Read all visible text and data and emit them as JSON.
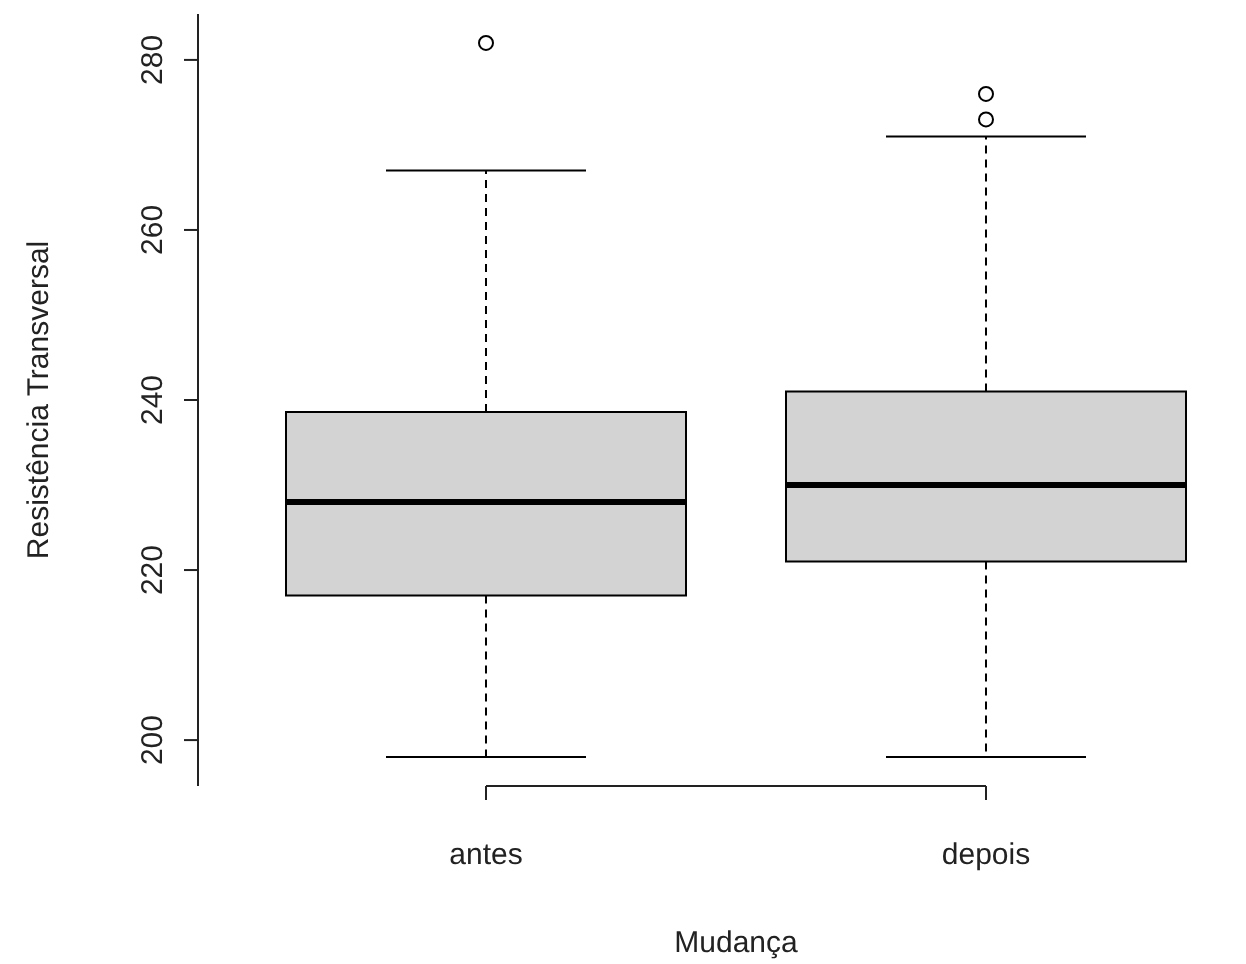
{
  "chart_data": {
    "type": "box",
    "xlabel": "Mudança",
    "ylabel": "Resistência Transversal",
    "categories": [
      "antes",
      "depois"
    ],
    "color": "#d3d3d3",
    "marker": "circle",
    "boxes": [
      {
        "low": 198,
        "q1": 217,
        "median": 228,
        "q3": 238.6,
        "high": 267,
        "outliers": [
          282
        ]
      },
      {
        "low": 198,
        "q1": 221,
        "median": 230,
        "q3": 241,
        "high": 271,
        "outliers": [
          276,
          273
        ]
      }
    ],
    "ylim": [
      194.6,
      285.4
    ],
    "yticks": [
      200,
      220,
      240,
      260,
      280
    ]
  }
}
